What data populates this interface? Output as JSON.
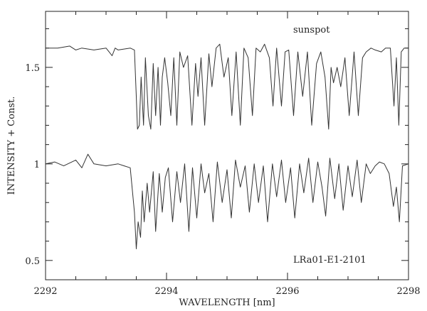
{
  "chart_data": {
    "type": "line",
    "title": "",
    "xlabel": "WAVELENGTH [nm]",
    "ylabel": "INTENSITY + Const.",
    "xlim": [
      2292,
      2298
    ],
    "ylim": [
      0.4,
      1.79
    ],
    "x_ticks": [
      2292,
      2294,
      2296,
      2298
    ],
    "x_tick_labels": [
      "2292",
      "2294",
      "2296",
      "2298"
    ],
    "y_ticks": [
      0.5,
      1,
      1.5
    ],
    "y_tick_labels": [
      "0.5",
      "1",
      "1.5"
    ],
    "grid": false,
    "annotations": [
      {
        "text": "sunspot",
        "x": 2296.2,
        "y": 1.7
      },
      {
        "text": "LRa01-E1-2101",
        "x": 2295.5,
        "y": 0.52
      }
    ],
    "series": [
      {
        "color": "#333333",
        "x": [
          2292.0,
          2292.2,
          2292.4,
          2292.5,
          2292.6,
          2292.8,
          2293.0,
          2293.05,
          2293.1,
          2293.15,
          2293.2,
          2293.4,
          2293.47,
          2293.5,
          2293.52,
          2293.55,
          2293.58,
          2293.62,
          2293.65,
          2293.7,
          2293.74,
          2293.78,
          2293.82,
          2293.86,
          2293.9,
          2293.93,
          2293.97,
          2294.02,
          2294.07,
          2294.12,
          2294.17,
          2294.22,
          2294.28,
          2294.35,
          2294.42,
          2294.48,
          2294.52,
          2294.57,
          2294.63,
          2294.7,
          2294.75,
          2294.82,
          2294.88,
          2294.95,
          2295.02,
          2295.08,
          2295.15,
          2295.22,
          2295.28,
          2295.35,
          2295.42,
          2295.48,
          2295.55,
          2295.62,
          2295.7,
          2295.76,
          2295.82,
          2295.9,
          2295.96,
          2296.02,
          2296.1,
          2296.17,
          2296.25,
          2296.33,
          2296.4,
          2296.48,
          2296.55,
          2296.62,
          2296.68,
          2296.72,
          2296.76,
          2296.82,
          2296.88,
          2296.95,
          2297.02,
          2297.1,
          2297.17,
          2297.24,
          2297.3,
          2297.38,
          2297.45,
          2297.55,
          2297.62,
          2297.7,
          2297.76,
          2297.8,
          2297.84,
          2297.88,
          2297.93,
          2298.0
        ],
        "y": [
          1.6,
          1.6,
          1.61,
          1.59,
          1.6,
          1.59,
          1.6,
          1.58,
          1.56,
          1.6,
          1.59,
          1.6,
          1.59,
          1.35,
          1.18,
          1.2,
          1.45,
          1.2,
          1.55,
          1.25,
          1.18,
          1.52,
          1.25,
          1.5,
          1.2,
          1.45,
          1.55,
          1.42,
          1.25,
          1.55,
          1.2,
          1.58,
          1.5,
          1.56,
          1.2,
          1.52,
          1.35,
          1.55,
          1.2,
          1.57,
          1.4,
          1.6,
          1.62,
          1.45,
          1.55,
          1.25,
          1.58,
          1.2,
          1.6,
          1.55,
          1.25,
          1.6,
          1.58,
          1.62,
          1.55,
          1.3,
          1.6,
          1.3,
          1.58,
          1.59,
          1.25,
          1.58,
          1.35,
          1.58,
          1.2,
          1.52,
          1.58,
          1.45,
          1.18,
          1.5,
          1.42,
          1.5,
          1.4,
          1.55,
          1.25,
          1.58,
          1.25,
          1.55,
          1.58,
          1.6,
          1.59,
          1.58,
          1.6,
          1.6,
          1.3,
          1.55,
          1.2,
          1.58,
          1.6,
          1.6
        ]
      },
      {
        "color": "#333333",
        "x": [
          2292.0,
          2292.15,
          2292.3,
          2292.5,
          2292.6,
          2292.7,
          2292.8,
          2293.0,
          2293.2,
          2293.3,
          2293.4,
          2293.47,
          2293.5,
          2293.53,
          2293.57,
          2293.6,
          2293.63,
          2293.68,
          2293.72,
          2293.78,
          2293.82,
          2293.88,
          2293.93,
          2293.98,
          2294.03,
          2294.1,
          2294.17,
          2294.23,
          2294.3,
          2294.37,
          2294.43,
          2294.5,
          2294.57,
          2294.63,
          2294.7,
          2294.77,
          2294.84,
          2294.92,
          2295.0,
          2295.07,
          2295.14,
          2295.22,
          2295.3,
          2295.37,
          2295.45,
          2295.52,
          2295.6,
          2295.67,
          2295.75,
          2295.82,
          2295.9,
          2295.97,
          2296.05,
          2296.12,
          2296.2,
          2296.27,
          2296.35,
          2296.42,
          2296.5,
          2296.57,
          2296.63,
          2296.7,
          2296.78,
          2296.85,
          2296.92,
          2297.0,
          2297.07,
          2297.15,
          2297.22,
          2297.3,
          2297.37,
          2297.45,
          2297.52,
          2297.6,
          2297.68,
          2297.75,
          2297.8,
          2297.85,
          2297.9,
          2298.0
        ],
        "y": [
          1.0,
          1.01,
          0.99,
          1.02,
          0.98,
          1.05,
          1.0,
          0.99,
          1.0,
          0.99,
          0.98,
          0.75,
          0.56,
          0.7,
          0.62,
          0.86,
          0.7,
          0.9,
          0.75,
          0.96,
          0.65,
          0.95,
          0.75,
          0.93,
          0.98,
          0.7,
          0.96,
          0.8,
          1.0,
          0.65,
          0.98,
          0.72,
          1.0,
          0.85,
          0.95,
          0.7,
          1.01,
          0.8,
          0.97,
          0.72,
          1.02,
          0.88,
          0.99,
          0.75,
          1.0,
          0.8,
          0.99,
          0.7,
          1.0,
          0.83,
          1.02,
          0.8,
          0.98,
          0.72,
          1.0,
          0.85,
          1.03,
          0.8,
          1.01,
          0.88,
          0.73,
          1.03,
          0.82,
          1.0,
          0.76,
          0.99,
          0.83,
          1.02,
          0.8,
          1.0,
          0.95,
          0.99,
          1.01,
          1.0,
          0.95,
          0.78,
          0.88,
          0.7,
          0.99,
          1.0
        ]
      }
    ]
  }
}
